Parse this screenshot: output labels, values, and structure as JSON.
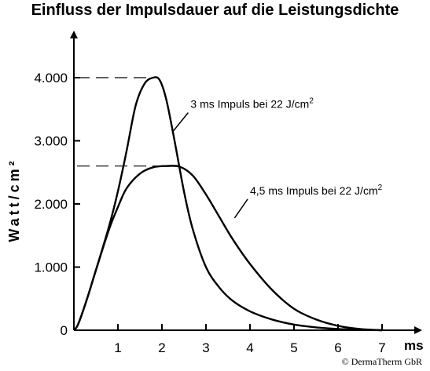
{
  "chart_data": {
    "type": "line",
    "title": "Einfluss der Impulsdauer auf die Leistungsdichte",
    "xlabel": "ms",
    "ylabel": "Watt/cm²",
    "xlim": [
      0,
      7.5
    ],
    "ylim": [
      0,
      4250
    ],
    "x_ticks": [
      1,
      2,
      3,
      4,
      5,
      6,
      7
    ],
    "x_tick_labels": [
      "1",
      "2",
      "3",
      "4",
      "5",
      "6",
      "7"
    ],
    "y_ticks": [
      0,
      1000,
      2000,
      3000,
      4000
    ],
    "y_tick_labels": [
      "0",
      "1.000",
      "2.000",
      "3.000",
      "4.000"
    ],
    "grid": false,
    "series": [
      {
        "name": "3 ms Impuls bei 22 J/cm",
        "name_sup": "2",
        "x": [
          0,
          0.1,
          0.3,
          0.5,
          0.8,
          1.0,
          1.2,
          1.4,
          1.6,
          1.8,
          1.95,
          2.1,
          2.3,
          2.5,
          2.7,
          3.0,
          3.3,
          3.6,
          4.0,
          4.5,
          5.0,
          5.5,
          6.0,
          6.5,
          7.0
        ],
        "y": [
          0,
          100,
          500,
          950,
          1650,
          2200,
          2850,
          3550,
          3900,
          4000,
          3960,
          3650,
          2950,
          2200,
          1600,
          1000,
          680,
          470,
          300,
          170,
          90,
          45,
          20,
          8,
          0
        ]
      },
      {
        "name": "4,5 ms Impuls bei 22 J/cm",
        "name_sup": "2",
        "x": [
          0,
          0.1,
          0.3,
          0.5,
          0.8,
          1.0,
          1.2,
          1.5,
          1.8,
          2.1,
          2.4,
          2.7,
          3.0,
          3.3,
          3.6,
          4.0,
          4.5,
          5.0,
          5.5,
          6.0,
          6.5,
          7.0
        ],
        "y": [
          0,
          100,
          500,
          950,
          1600,
          1950,
          2250,
          2480,
          2580,
          2600,
          2590,
          2450,
          2150,
          1800,
          1450,
          1050,
          640,
          340,
          170,
          70,
          20,
          0
        ]
      }
    ],
    "reference_lines": [
      {
        "y": 4000,
        "x_end": 1.8
      },
      {
        "y": 2600,
        "x_end": 2.1
      }
    ],
    "annotations": [
      {
        "text": "3 ms Impuls bei 22 J/cm",
        "sup": "2",
        "x": 2.65,
        "y": 3520,
        "leader_to_x": 2.25
      },
      {
        "text": "4,5 ms Impuls bei 22 J/cm",
        "sup": "2",
        "x": 4.0,
        "y": 2150,
        "leader_to_x": 3.65
      }
    ]
  },
  "copyright": "© DermaTherm GbR"
}
